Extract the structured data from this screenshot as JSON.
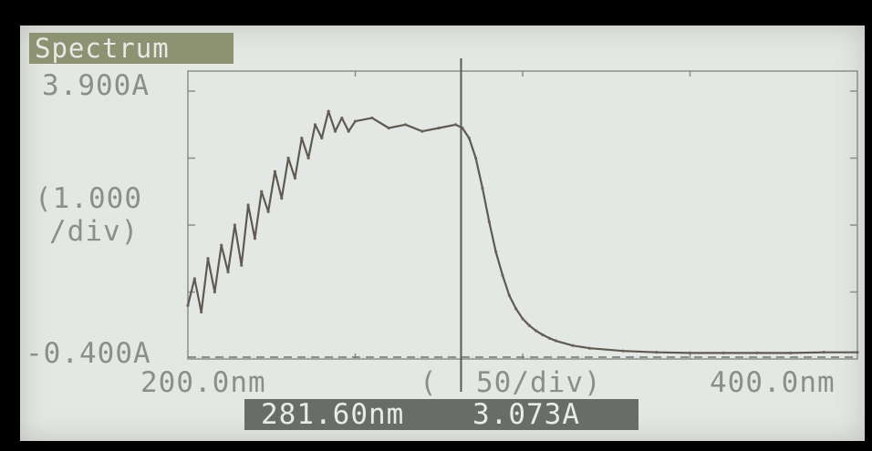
{
  "screen_title": "Spectrum",
  "chart_data": {
    "type": "line",
    "title": "Spectrum",
    "y_top_label": "3.900A",
    "y_bottom_label": "-0.400A",
    "y_scale_label_line1": "(1.000",
    "y_scale_label_line2": "/div)",
    "x_left_label": "200.0nm",
    "x_right_label": "400.0nm",
    "x_scale_label_open": "(",
    "x_scale_label": "50/div)",
    "xlim": [
      200,
      400
    ],
    "ylim": [
      -0.4,
      3.9
    ],
    "x_step_per_div": 50,
    "y_step_per_div": 1.0,
    "baseline": -0.4,
    "cursor": {
      "x": 281.6,
      "y": 3.073
    },
    "series": [
      {
        "x": [
          200,
          202,
          204,
          206,
          208,
          210,
          212,
          214,
          216,
          218,
          220,
          222,
          224,
          226,
          228,
          230,
          232,
          234,
          236,
          238,
          240,
          242,
          244,
          246,
          248,
          250,
          255,
          260,
          265,
          270,
          275,
          280,
          282,
          284,
          286,
          288,
          290,
          292,
          294,
          296,
          298,
          300,
          302,
          304,
          306,
          308,
          310,
          315,
          320,
          330,
          340,
          350,
          360,
          370,
          380,
          390,
          400
        ],
        "y": [
          0.4,
          0.8,
          0.3,
          1.1,
          0.6,
          1.3,
          0.9,
          1.6,
          1.0,
          1.9,
          1.4,
          2.1,
          1.8,
          2.4,
          2.0,
          2.6,
          2.3,
          2.9,
          2.6,
          3.1,
          2.9,
          3.3,
          3.0,
          3.2,
          3.0,
          3.15,
          3.2,
          3.05,
          3.1,
          3.0,
          3.05,
          3.1,
          3.05,
          2.9,
          2.6,
          2.15,
          1.65,
          1.2,
          0.85,
          0.55,
          0.35,
          0.2,
          0.1,
          0.02,
          -0.04,
          -0.09,
          -0.13,
          -0.2,
          -0.24,
          -0.28,
          -0.3,
          -0.31,
          -0.31,
          -0.31,
          -0.31,
          -0.3,
          -0.3
        ]
      }
    ],
    "grid": false
  },
  "readout": {
    "wavelength": "281.60nm",
    "absorbance": "3.073A"
  }
}
